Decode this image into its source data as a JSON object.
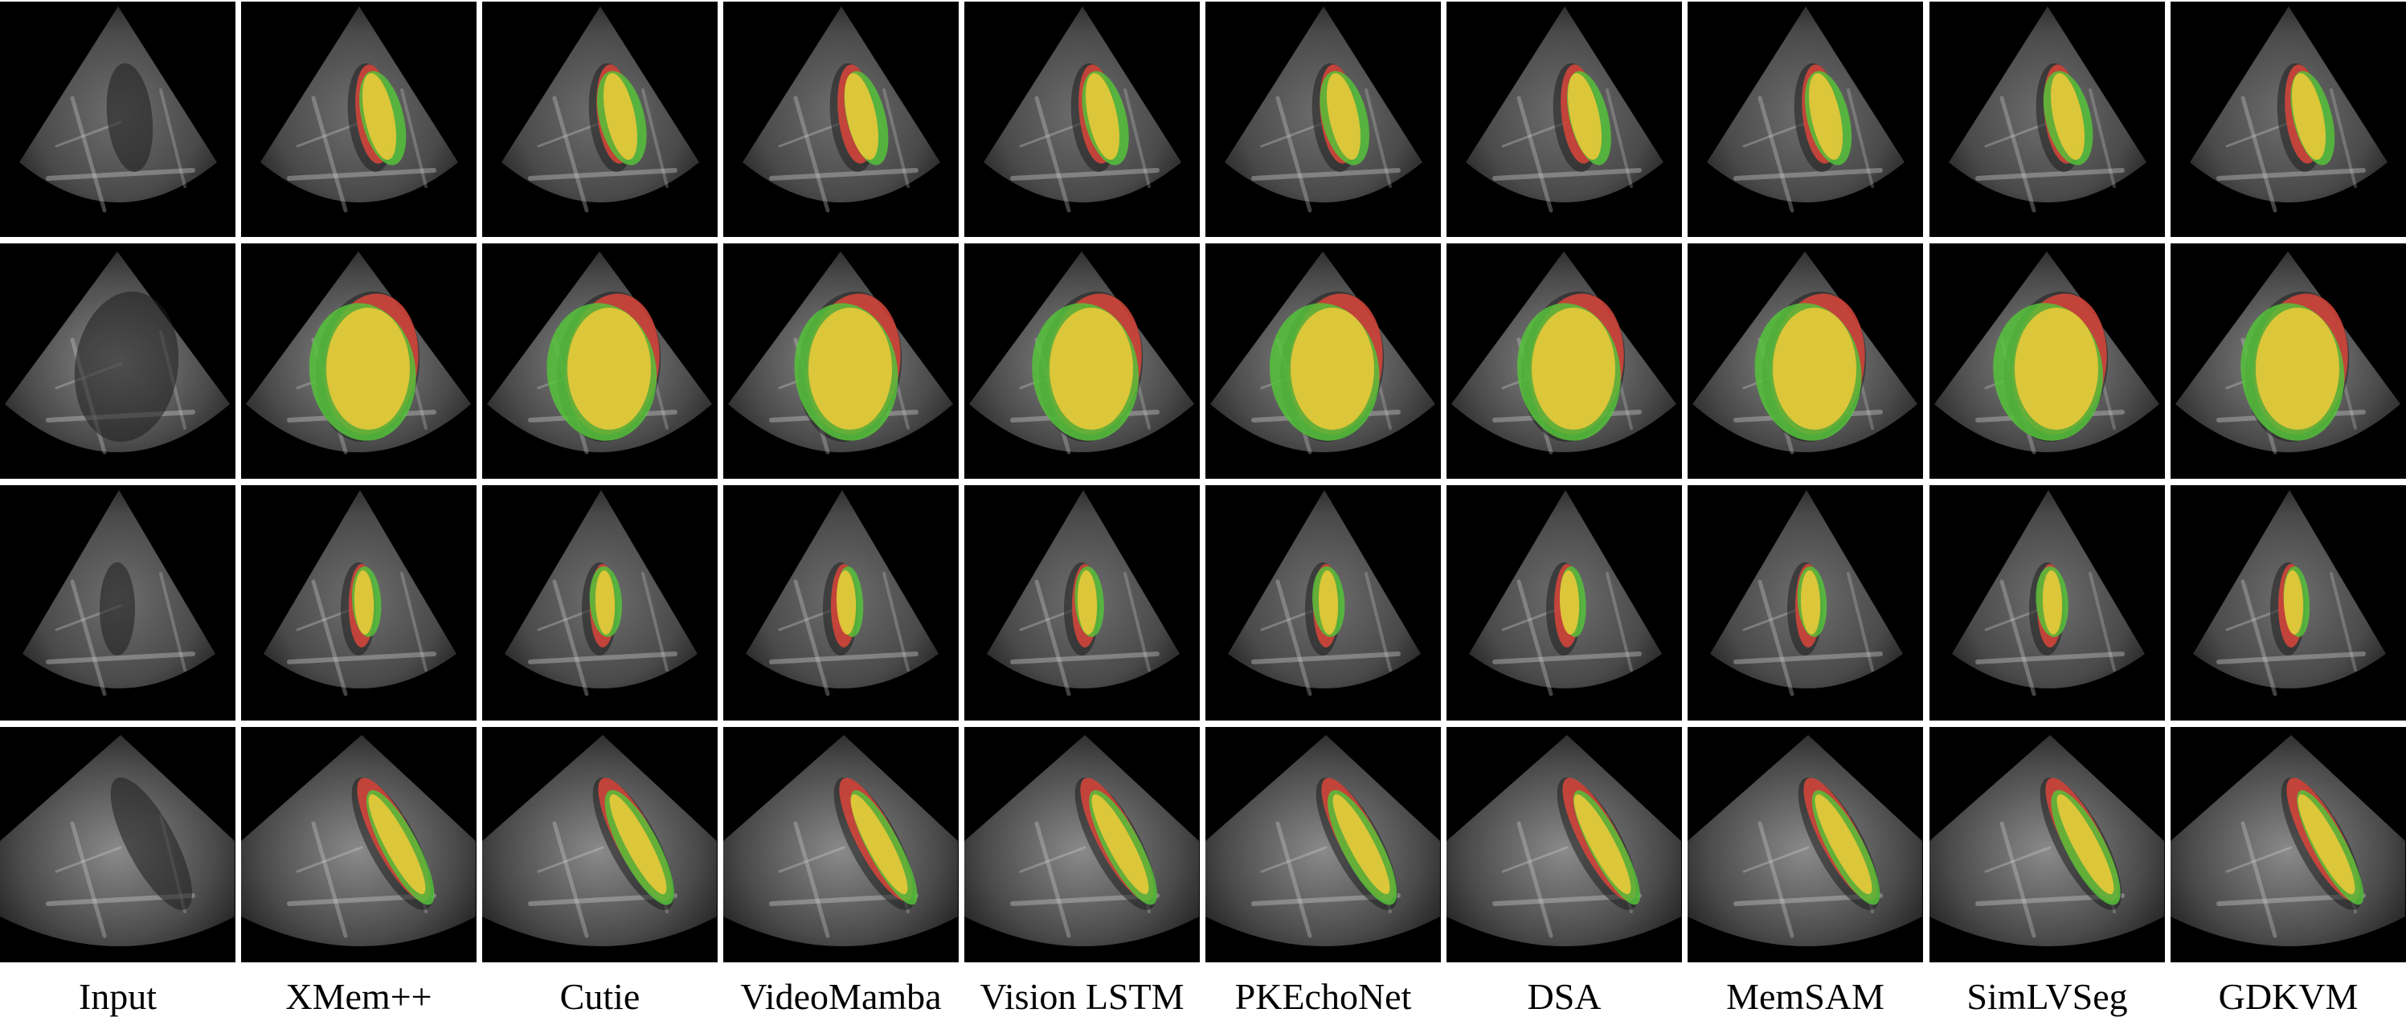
{
  "figure": {
    "columns": [
      {
        "label": "Input",
        "overlay": false
      },
      {
        "label": "XMem++",
        "overlay": true
      },
      {
        "label": "Cutie",
        "overlay": true
      },
      {
        "label": "VideoMamba",
        "overlay": true
      },
      {
        "label": "Vision LSTM",
        "overlay": true
      },
      {
        "label": "PKEchoNet",
        "overlay": true
      },
      {
        "label": "DSA",
        "overlay": true
      },
      {
        "label": "MemSAM",
        "overlay": true
      },
      {
        "label": "SimLVSeg",
        "overlay": true
      },
      {
        "label": "GDKVM",
        "overlay": true
      }
    ],
    "rows": 4,
    "overlay_colors": {
      "ground_truth_only": "#d9453a",
      "prediction_only": "#55c23a",
      "overlap": "#e6c83a"
    }
  }
}
